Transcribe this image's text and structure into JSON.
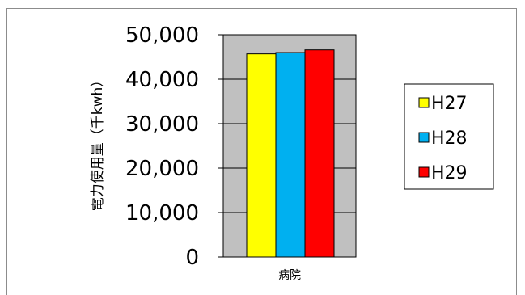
{
  "chart_data": {
    "type": "bar",
    "categories": [
      "病院"
    ],
    "series": [
      {
        "name": "H27",
        "values": [
          45700
        ],
        "color": "#ffff00"
      },
      {
        "name": "H28",
        "values": [
          46000
        ],
        "color": "#00b0f0"
      },
      {
        "name": "H29",
        "values": [
          46600
        ],
        "color": "#ff0000"
      }
    ],
    "ylabel": "電力使用量（千kwh）",
    "xlabel": "",
    "ylim": [
      0,
      50000
    ],
    "yticks": [
      "0",
      "10,000",
      "20,000",
      "30,000",
      "40,000",
      "50,000"
    ],
    "grid": true,
    "plot_background": "#c0c0c0",
    "legend_position": "right"
  }
}
